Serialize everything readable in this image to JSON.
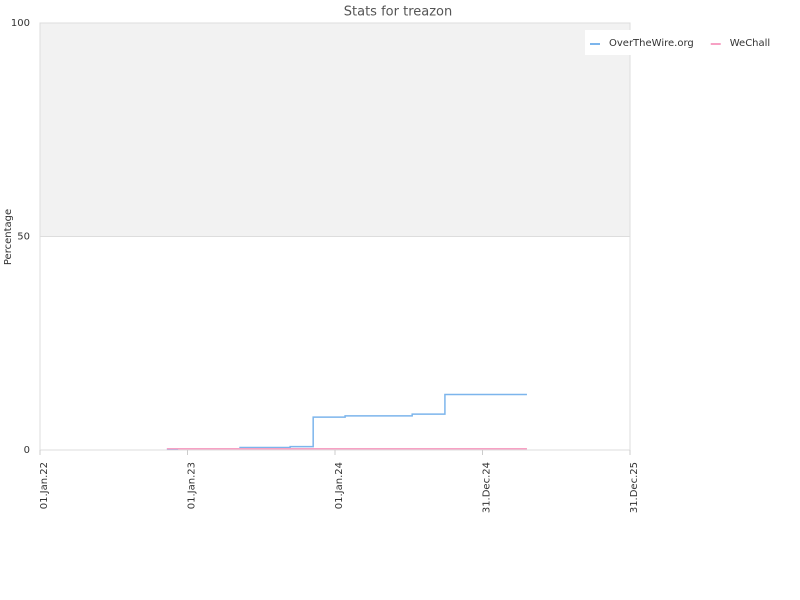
{
  "chart_data": {
    "type": "line",
    "title": "Stats for treazon",
    "y_label": "Percentage",
    "xlim": [
      "2022-01-01",
      "2025-12-31"
    ],
    "xticks": [
      {
        "value": "2022-01-01",
        "label": "01.Jan.22"
      },
      {
        "value": "2023-01-01",
        "label": "01.Jan.23"
      },
      {
        "value": "2024-01-01",
        "label": "01.Jan.24"
      },
      {
        "value": "2024-12-31",
        "label": "31.Dec.24"
      },
      {
        "value": "2025-12-31",
        "label": "31.Dec.25"
      }
    ],
    "ylim": [
      0,
      100
    ],
    "yticks": [
      0,
      50,
      100
    ],
    "grid": true,
    "grid_bands": true,
    "legend": "top-right",
    "series": [
      {
        "name": "OverTheWire.org",
        "color": "#7cb5ec",
        "x": [
          "2022-11-11",
          "2022-12-07",
          "2022-12-07",
          "2023-05-11",
          "2023-05-11",
          "2023-09-12",
          "2023-09-12",
          "2023-11-08",
          "2023-11-08",
          "2024-01-26",
          "2024-01-26",
          "2024-07-10",
          "2024-07-10",
          "2024-09-29",
          "2024-09-29",
          "2025-04-20"
        ],
        "values": [
          0.2,
          0.2,
          0.3,
          0.3,
          0.6,
          0.6,
          0.8,
          0.8,
          7.7,
          7.7,
          8.0,
          8.0,
          8.4,
          8.4,
          13.0,
          13.0
        ]
      },
      {
        "name": "WeChall",
        "color": "#f7a1c4",
        "x": [
          "2022-11-11",
          "2025-04-20"
        ],
        "values": [
          0.3,
          0.3
        ]
      }
    ]
  }
}
